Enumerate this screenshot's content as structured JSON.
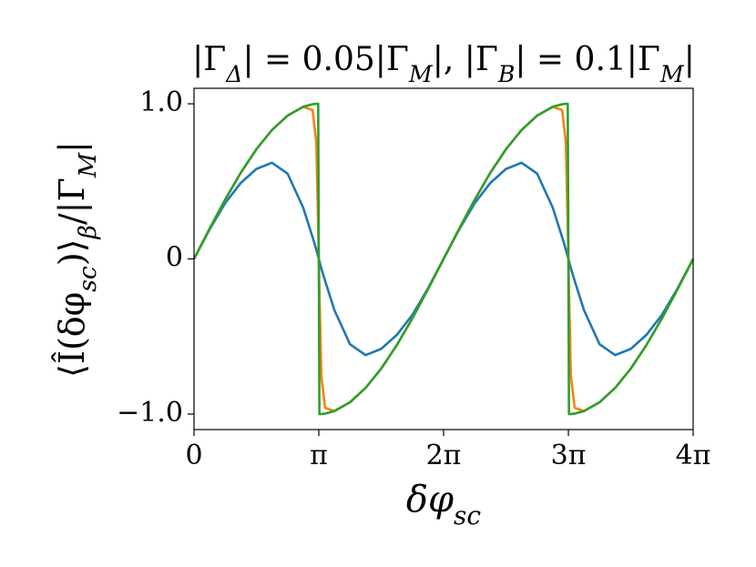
{
  "chart_data": {
    "type": "line",
    "title": "|Γ_Δ| = 0.05|Γ_M|, |Γ_B| = 0.1|Γ_M|",
    "x_label": "δφ_{sc}",
    "y_label": "⟨Î(δφ_{sc})⟩_β/|Γ_M|",
    "x": [
      0,
      0.393,
      0.785,
      1.178,
      1.571,
      1.963,
      2.356,
      2.749,
      2.985,
      3.079,
      3.126,
      3.142,
      3.157,
      3.204,
      3.299,
      3.534,
      3.927,
      4.32,
      4.712,
      5.105,
      5.498,
      5.89,
      6.283,
      6.676,
      7.069,
      7.461,
      7.854,
      8.247,
      8.639,
      9.032,
      9.268,
      9.362,
      9.409,
      9.425,
      9.44,
      9.487,
      9.582,
      9.817,
      10.21,
      10.603,
      10.996,
      11.388,
      11.781,
      12.174,
      12.566
    ],
    "series": [
      {
        "color": "#1f77b4",
        "values": [
          0,
          0.19,
          0.36,
          0.49,
          0.58,
          0.62,
          0.55,
          0.33,
          0.14,
          0.06,
          0.015,
          0,
          -0.015,
          -0.06,
          -0.14,
          -0.33,
          -0.55,
          -0.62,
          -0.58,
          -0.49,
          -0.36,
          -0.19,
          0,
          0.19,
          0.36,
          0.49,
          0.58,
          0.62,
          0.55,
          0.33,
          0.14,
          0.06,
          0.015,
          0,
          -0.015,
          -0.06,
          -0.14,
          -0.33,
          -0.55,
          -0.62,
          -0.58,
          -0.49,
          -0.36,
          -0.19,
          0
        ]
      },
      {
        "color": "#ff7f0e",
        "values": [
          0,
          0.195,
          0.383,
          0.556,
          0.707,
          0.831,
          0.924,
          0.98,
          0.96,
          0.75,
          0.2,
          0,
          -0.2,
          -0.75,
          -0.96,
          -0.98,
          -0.924,
          -0.831,
          -0.707,
          -0.556,
          -0.383,
          -0.195,
          0,
          0.195,
          0.383,
          0.556,
          0.707,
          0.831,
          0.924,
          0.98,
          0.96,
          0.75,
          0.2,
          0,
          -0.2,
          -0.75,
          -0.96,
          -0.98,
          -0.924,
          -0.831,
          -0.707,
          -0.556,
          -0.383,
          -0.195,
          0
        ]
      },
      {
        "color": "#2ca02c",
        "values": [
          0,
          0.195,
          0.383,
          0.556,
          0.707,
          0.831,
          0.924,
          0.981,
          0.997,
          1.0,
          1.0,
          0,
          -1.0,
          -1.0,
          -0.997,
          -0.981,
          -0.924,
          -0.831,
          -0.707,
          -0.556,
          -0.383,
          -0.195,
          0,
          0.195,
          0.383,
          0.556,
          0.707,
          0.831,
          0.924,
          0.981,
          0.997,
          1.0,
          1.0,
          0,
          -1.0,
          -1.0,
          -0.997,
          -0.981,
          -0.924,
          -0.831,
          -0.707,
          -0.556,
          -0.383,
          -0.195,
          0
        ]
      }
    ],
    "xlim": [
      0,
      12.566
    ],
    "ylim": [
      -1.1,
      1.1
    ],
    "xticks": [
      0,
      {
        "value": 3.142,
        "label": "π"
      },
      {
        "value": 6.283,
        "label": "2π"
      },
      {
        "value": 9.425,
        "label": "3π"
      },
      {
        "value": 12.566,
        "label": "4π"
      }
    ],
    "yticks": [
      {
        "value": -1,
        "label": "−1.0"
      },
      0,
      {
        "value": 1,
        "label": "1.0"
      }
    ],
    "grid": false
  }
}
